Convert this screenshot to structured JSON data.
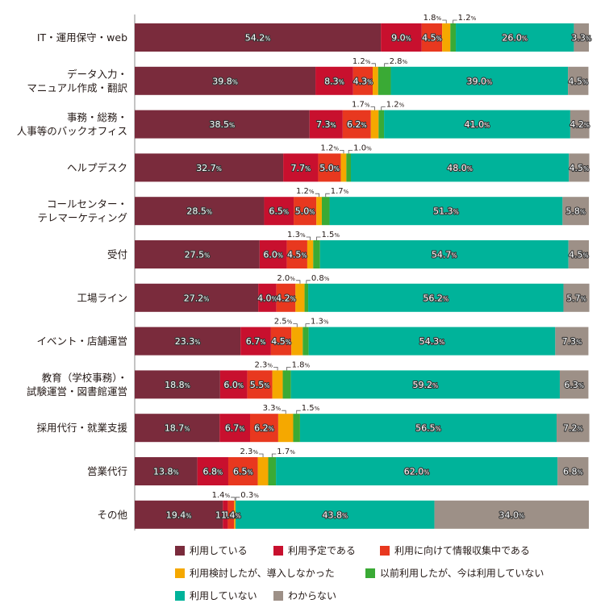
{
  "chart_data": {
    "type": "bar",
    "orientation": "horizontal",
    "stacked": true,
    "xlim": [
      0,
      100
    ],
    "categories": [
      [
        "IT・運用保守・web"
      ],
      [
        "データ入力・",
        "マニュアル作成・翻訳"
      ],
      [
        "事務・総務・",
        "人事等のバックオフィス"
      ],
      [
        "ヘルプデスク"
      ],
      [
        "コールセンター・",
        "テレマーケティング"
      ],
      [
        "受付"
      ],
      [
        "工場ライン"
      ],
      [
        "イベント・店舗運営"
      ],
      [
        "教育（学校事務）・",
        "試験運営・図書館運営"
      ],
      [
        "採用代行・就業支援"
      ],
      [
        "営業代行"
      ],
      [
        "その他"
      ]
    ],
    "series": [
      {
        "name": "利用している",
        "color": "#7a2b3c",
        "values": [
          54.2,
          39.8,
          38.5,
          32.7,
          28.5,
          27.5,
          27.2,
          23.3,
          18.8,
          18.7,
          13.8,
          19.4
        ]
      },
      {
        "name": "利用予定である",
        "color": "#c8102e",
        "values": [
          9.0,
          8.3,
          7.3,
          7.7,
          6.5,
          6.0,
          4.0,
          6.7,
          6.0,
          6.7,
          6.8,
          1.1
        ]
      },
      {
        "name": "利用に向けて情報収集中である",
        "color": "#e8381f",
        "values": [
          4.5,
          4.3,
          6.2,
          5.0,
          5.0,
          4.5,
          4.2,
          4.5,
          5.5,
          6.2,
          6.5,
          1.4
        ]
      },
      {
        "name": "利用検討したが、導入しなかった",
        "color": "#f5a800",
        "values": [
          1.8,
          1.2,
          1.7,
          1.2,
          1.2,
          1.3,
          2.0,
          2.5,
          2.3,
          3.3,
          2.3,
          0.3
        ]
      },
      {
        "name": "以前利用したが、今は利用していない",
        "color": "#3aaa35",
        "values": [
          1.2,
          2.8,
          1.2,
          1.0,
          1.7,
          1.5,
          0.8,
          1.3,
          1.8,
          1.5,
          1.7,
          0.0
        ]
      },
      {
        "name": "利用していない",
        "color": "#00b39a",
        "values": [
          26.0,
          39.0,
          41.0,
          48.0,
          51.3,
          54.7,
          56.2,
          54.3,
          59.2,
          56.5,
          62.0,
          43.8
        ]
      },
      {
        "name": "わからない",
        "color": "#9d9087",
        "values": [
          3.3,
          4.5,
          4.2,
          4.5,
          5.8,
          4.5,
          5.7,
          7.3,
          6.3,
          7.2,
          6.8,
          34.0
        ]
      }
    ],
    "callouts": [
      {
        "row": 0,
        "labels": [
          "1.8%",
          "1.2%"
        ]
      },
      {
        "row": 1,
        "labels": [
          "1.2%",
          "2.8%"
        ]
      },
      {
        "row": 2,
        "labels": [
          "1.7%",
          "1.2%"
        ]
      },
      {
        "row": 3,
        "labels": [
          "1.2%",
          "1.0%"
        ]
      },
      {
        "row": 4,
        "labels": [
          "1.2%",
          "1.7%"
        ]
      },
      {
        "row": 5,
        "labels": [
          "1.3%",
          "1.5%"
        ]
      },
      {
        "row": 6,
        "labels": [
          "2.0%",
          "0.8%"
        ]
      },
      {
        "row": 7,
        "labels": [
          "2.5%",
          "1.3%"
        ]
      },
      {
        "row": 8,
        "labels": [
          "2.3%",
          "1.8%"
        ]
      },
      {
        "row": 9,
        "labels": [
          "3.3%",
          "1.5%"
        ]
      },
      {
        "row": 10,
        "labels": [
          "2.3%",
          "1.7%"
        ]
      },
      {
        "row": 11,
        "labels": [
          "1.4%",
          "0.3%"
        ]
      }
    ],
    "legend": {
      "position": "bottom"
    }
  }
}
